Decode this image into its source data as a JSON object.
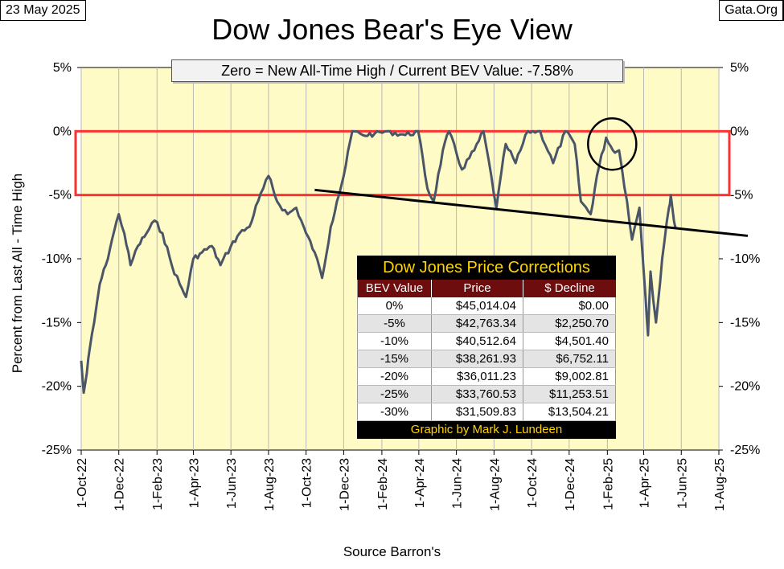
{
  "header": {
    "date": "23 May 2025",
    "site": "Gata.Org",
    "title": "Dow Jones Bear's Eye View",
    "subtitle": "Zero = New All-Time High / Current BEV Value:  -7.58%"
  },
  "axes": {
    "ylabel": "Percent from Last All - Time High",
    "xlabel": "Source Barron's"
  },
  "colors": {
    "plot_background": "#fffbc6",
    "series_line": "#4a5568",
    "highlight_box": "#ff3030",
    "trend_line": "#000000"
  },
  "chart_data": {
    "type": "line",
    "title": "Dow Jones Bear's Eye View",
    "xlabel": "Source Barron's",
    "ylabel": "Percent from Last All - Time High",
    "ylim": [
      -25,
      5
    ],
    "xlim": [
      "2022-10-01",
      "2025-08-01"
    ],
    "y_ticks": [
      "5%",
      "0%",
      "-5%",
      "-10%",
      "-15%",
      "-20%",
      "-25%"
    ],
    "x_ticks": [
      "1-Oct-22",
      "1-Dec-22",
      "1-Feb-23",
      "1-Apr-23",
      "1-Jun-23",
      "1-Aug-23",
      "1-Oct-23",
      "1-Dec-23",
      "1-Feb-24",
      "1-Apr-24",
      "1-Jun-24",
      "1-Aug-24",
      "1-Oct-24",
      "1-Dec-24",
      "1-Feb-25",
      "1-Apr-25",
      "1-Jun-25",
      "1-Aug-25"
    ],
    "grid": "vertical",
    "series": [
      {
        "points": [
          [
            "2022-10-01",
            -18.0
          ],
          [
            "2022-10-05",
            -20.5
          ],
          [
            "2022-10-10",
            -19.0
          ],
          [
            "2022-10-15",
            -17.0
          ],
          [
            "2022-10-22",
            -15.0
          ],
          [
            "2022-10-31",
            -12.0
          ],
          [
            "2022-11-10",
            -10.5
          ],
          [
            "2022-11-20",
            -8.5
          ],
          [
            "2022-12-01",
            -6.5
          ],
          [
            "2022-12-10",
            -8.0
          ],
          [
            "2022-12-20",
            -10.5
          ],
          [
            "2023-01-01",
            -9.0
          ],
          [
            "2023-01-15",
            -8.0
          ],
          [
            "2023-01-28",
            -7.0
          ],
          [
            "2023-02-10",
            -8.0
          ],
          [
            "2023-02-25",
            -10.5
          ],
          [
            "2023-03-10",
            -12.0
          ],
          [
            "2023-03-20",
            -13.0
          ],
          [
            "2023-04-01",
            -10.0
          ],
          [
            "2023-04-15",
            -9.5
          ],
          [
            "2023-05-01",
            -9.0
          ],
          [
            "2023-05-15",
            -10.5
          ],
          [
            "2023-06-01",
            -9.0
          ],
          [
            "2023-06-15",
            -8.0
          ],
          [
            "2023-07-01",
            -7.5
          ],
          [
            "2023-07-15",
            -5.5
          ],
          [
            "2023-08-01",
            -3.5
          ],
          [
            "2023-08-15",
            -5.5
          ],
          [
            "2023-09-01",
            -6.5
          ],
          [
            "2023-09-15",
            -6.0
          ],
          [
            "2023-10-01",
            -8.0
          ],
          [
            "2023-10-15",
            -9.5
          ],
          [
            "2023-10-27",
            -11.5
          ],
          [
            "2023-11-10",
            -7.5
          ],
          [
            "2023-11-20",
            -5.5
          ],
          [
            "2023-12-01",
            -3.5
          ],
          [
            "2023-12-15",
            0.0
          ],
          [
            "2024-01-01",
            -0.3
          ],
          [
            "2024-01-20",
            -0.2
          ],
          [
            "2024-02-10",
            0.0
          ],
          [
            "2024-03-10",
            -0.3
          ],
          [
            "2024-03-31",
            0.0
          ],
          [
            "2024-04-15",
            -4.5
          ],
          [
            "2024-04-25",
            -5.5
          ],
          [
            "2024-05-10",
            -1.5
          ],
          [
            "2024-05-20",
            0.0
          ],
          [
            "2024-06-10",
            -3.0
          ],
          [
            "2024-06-30",
            -1.5
          ],
          [
            "2024-07-15",
            0.0
          ],
          [
            "2024-08-05",
            -6.0
          ],
          [
            "2024-08-20",
            -1.0
          ],
          [
            "2024-09-05",
            -2.5
          ],
          [
            "2024-09-25",
            0.0
          ],
          [
            "2024-10-15",
            0.0
          ],
          [
            "2024-11-05",
            -2.5
          ],
          [
            "2024-11-25",
            0.0
          ],
          [
            "2024-12-10",
            -1.0
          ],
          [
            "2024-12-20",
            -5.5
          ],
          [
            "2025-01-05",
            -6.5
          ],
          [
            "2025-01-15",
            -3.5
          ],
          [
            "2025-01-30",
            -0.5
          ],
          [
            "2025-02-10",
            -1.5
          ],
          [
            "2025-02-20",
            -1.5
          ],
          [
            "2025-03-05",
            -5.5
          ],
          [
            "2025-03-13",
            -8.5
          ],
          [
            "2025-03-25",
            -6.0
          ],
          [
            "2025-04-04",
            -13.0
          ],
          [
            "2025-04-08",
            -16.0
          ],
          [
            "2025-04-12",
            -11.0
          ],
          [
            "2025-04-21",
            -15.0
          ],
          [
            "2025-05-01",
            -10.0
          ],
          [
            "2025-05-12",
            -6.0
          ],
          [
            "2025-05-15",
            -5.0
          ],
          [
            "2025-05-20",
            -7.0
          ],
          [
            "2025-05-23",
            -7.58
          ]
        ]
      }
    ],
    "annotations": {
      "highlight_band": {
        "y_from": 0,
        "y_to": -5
      },
      "trend_line": {
        "from": [
          "2023-10-15",
          -4.6
        ],
        "to": [
          "2025-08-01",
          -8.2
        ]
      },
      "circle": {
        "x": "2025-02-01",
        "y": -1.0
      }
    }
  },
  "table": {
    "title": "Dow Jones Price Corrections",
    "headers": [
      "BEV Value",
      "Price",
      "$ Decline"
    ],
    "rows": [
      [
        "0%",
        "$45,014.04",
        "$0.00"
      ],
      [
        "-5%",
        "$42,763.34",
        "$2,250.70"
      ],
      [
        "-10%",
        "$40,512.64",
        "$4,501.40"
      ],
      [
        "-15%",
        "$38,261.93",
        "$6,752.11"
      ],
      [
        "-20%",
        "$36,011.23",
        "$9,002.81"
      ],
      [
        "-25%",
        "$33,760.53",
        "$11,253.51"
      ],
      [
        "-30%",
        "$31,509.83",
        "$13,504.21"
      ]
    ],
    "footer": "Graphic by Mark J. Lundeen"
  }
}
